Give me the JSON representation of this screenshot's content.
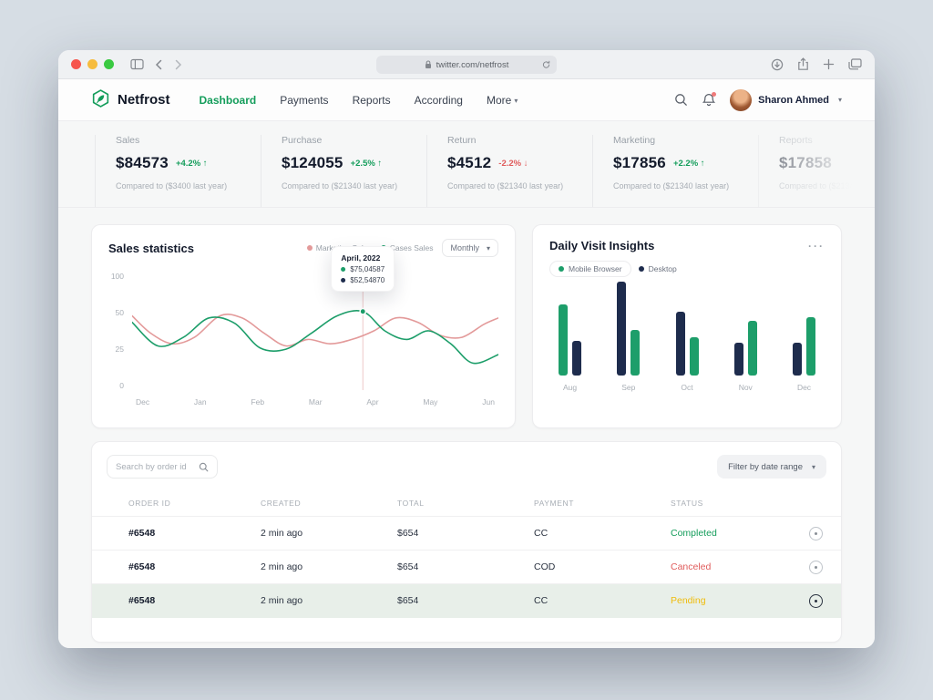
{
  "browser": {
    "url": "twitter.com/netfrost"
  },
  "header": {
    "brand": "Netfrost",
    "nav": [
      {
        "label": "Dashboard",
        "active": true
      },
      {
        "label": "Payments"
      },
      {
        "label": "Reports"
      },
      {
        "label": "According"
      },
      {
        "label": "More",
        "caret": true
      }
    ],
    "user_name": "Sharon Ahmed"
  },
  "stats": [
    {
      "label": "Sales",
      "value": "$84573",
      "delta": "+4.2%",
      "trend": "up",
      "compare": "Compared to ($3400 last year)"
    },
    {
      "label": "Purchase",
      "value": "$124055",
      "delta": "+2.5%",
      "trend": "up",
      "compare": "Compared to ($21340 last year)"
    },
    {
      "label": "Return",
      "value": "$4512",
      "delta": "-2.2%",
      "trend": "down",
      "compare": "Compared to ($21340 last year)"
    },
    {
      "label": "Marketing",
      "value": "$17856",
      "delta": "+2.2%",
      "trend": "up",
      "compare": "Compared to ($21340 last year)"
    },
    {
      "label": "Reports",
      "value": "$17858",
      "delta": "",
      "trend": "up",
      "compare": "Compared to ($21340 last year)",
      "faded": true
    }
  ],
  "chart_data": [
    {
      "type": "line",
      "title": "Sales statistics",
      "period": "Monthly",
      "x_labels": [
        "Dec",
        "Jan",
        "Feb",
        "Mar",
        "Apr",
        "May",
        "Jun"
      ],
      "y_ticks": [
        "100",
        "50",
        "25",
        "0"
      ],
      "series": [
        {
          "name": "Marketing Sales",
          "color": "#e39a9a",
          "points": [
            [
              0,
              64
            ],
            [
              5,
              48
            ],
            [
              11,
              38
            ],
            [
              17,
              44
            ],
            [
              24,
              64
            ],
            [
              30,
              62
            ],
            [
              36,
              48
            ],
            [
              42,
              36
            ],
            [
              48,
              42
            ],
            [
              54,
              38
            ],
            [
              60,
              42
            ],
            [
              66,
              50
            ],
            [
              72,
              62
            ],
            [
              78,
              58
            ],
            [
              84,
              46
            ],
            [
              90,
              44
            ],
            [
              96,
              56
            ],
            [
              100,
              62
            ]
          ]
        },
        {
          "name": "Cases Sales",
          "color": "#1d9e6a",
          "points": [
            [
              0,
              58
            ],
            [
              7,
              36
            ],
            [
              14,
              44
            ],
            [
              21,
              62
            ],
            [
              28,
              57
            ],
            [
              35,
              34
            ],
            [
              42,
              33
            ],
            [
              49,
              48
            ],
            [
              56,
              64
            ],
            [
              63,
              68
            ],
            [
              69,
              50
            ],
            [
              75,
              42
            ],
            [
              81,
              50
            ],
            [
              87,
              38
            ],
            [
              93,
              20
            ],
            [
              100,
              28
            ]
          ]
        }
      ],
      "marker": {
        "x": 63,
        "y": 68,
        "label": "Apr"
      },
      "tooltip": {
        "title": "April, 2022",
        "rows": [
          {
            "color": "#1d9e6a",
            "value": "$75,04587"
          },
          {
            "color": "#1e2c4d",
            "value": "$52,54870"
          }
        ]
      }
    },
    {
      "type": "bar",
      "title": "Daily Visit Insights",
      "legend": [
        {
          "label": "Mobile Browser",
          "color": "#1d9e6a",
          "pill": true
        },
        {
          "label": "Desktop",
          "color": "#1e2c4d",
          "pill": false
        }
      ],
      "colors": {
        "mobile": "#1d9e6a",
        "desktop": "#1e2c4d"
      },
      "categories": [
        "Aug",
        "Sep",
        "Oct",
        "Nov",
        "Dec"
      ],
      "groups": [
        {
          "label": "Aug",
          "bars": [
            {
              "series": "mobile",
              "value": 78
            },
            {
              "series": "desktop",
              "value": 38
            }
          ]
        },
        {
          "label": "Sep",
          "bars": [
            {
              "series": "desktop",
              "value": 103
            },
            {
              "series": "mobile",
              "value": 50
            }
          ]
        },
        {
          "label": "Oct",
          "bars": [
            {
              "series": "desktop",
              "value": 70
            },
            {
              "series": "mobile",
              "value": 42
            }
          ]
        },
        {
          "label": "Nov",
          "bars": [
            {
              "series": "desktop",
              "value": 36
            },
            {
              "series": "mobile",
              "value": 60
            }
          ]
        },
        {
          "label": "Dec",
          "bars": [
            {
              "series": "desktop",
              "value": 36
            },
            {
              "series": "mobile",
              "value": 64
            }
          ]
        }
      ]
    }
  ],
  "orders": {
    "search_placeholder": "Search by order id",
    "filter_label": "Filter by date range",
    "columns": [
      "ORDER ID",
      "CREATED",
      "TOTAL",
      "PAYMENT",
      "STATUS"
    ],
    "rows": [
      {
        "order_id": "#6548",
        "created": "2 min ago",
        "total": "$654",
        "payment": "CC",
        "status": "Completed"
      },
      {
        "order_id": "#6548",
        "created": "2 min ago",
        "total": "$654",
        "payment": "COD",
        "status": "Canceled"
      },
      {
        "order_id": "#6548",
        "created": "2 min ago",
        "total": "$654",
        "payment": "CC",
        "status": "Pending",
        "highlighted": true
      }
    ]
  },
  "colors": {
    "accent_green": "#149d5b",
    "navy": "#1e2c4d",
    "pink": "#e39a9a",
    "red": "#e05c5c",
    "amber": "#efbc0c"
  }
}
